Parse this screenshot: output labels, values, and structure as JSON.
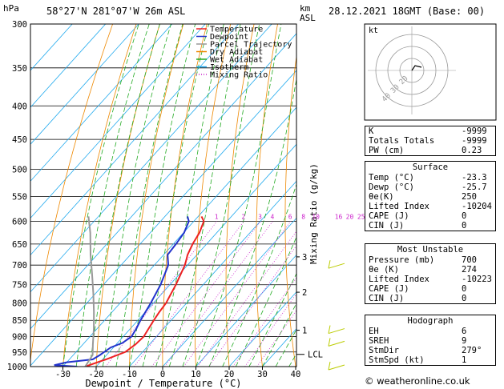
{
  "header": {
    "location": "58°27'N  281°07'W  26m  ASL",
    "datetime": "28.12.2021  18GMT  (Base: 00)",
    "hpa_label": "hPa",
    "km_label": "km",
    "asl_label": "ASL"
  },
  "chart_data": {
    "type": "line",
    "title": "",
    "xlabel": "Dewpoint / Temperature (°C)",
    "ylabel": "Mixing Ratio (g/kg)",
    "xlim": [
      -40,
      40
    ],
    "ylim_hpa": [
      1000,
      300
    ],
    "pressure_ticks": [
      300,
      350,
      400,
      450,
      500,
      550,
      600,
      650,
      700,
      750,
      800,
      850,
      900,
      950,
      1000
    ],
    "temp_ticks": [
      -30,
      -20,
      -10,
      0,
      10,
      20,
      30,
      40
    ],
    "km_ticks": [
      {
        "label": "1",
        "p": 880
      },
      {
        "label": "2",
        "p": 770
      },
      {
        "label": "3",
        "p": 680
      }
    ],
    "lcl": {
      "label": "LCL",
      "p": 958
    },
    "mixing_ratio_labels": [
      "1",
      "2",
      "3",
      "4",
      "6",
      "8",
      "10",
      "16",
      "20",
      "25"
    ],
    "mixing_ratio_values": [
      1,
      2,
      3,
      4,
      6,
      8,
      10,
      16,
      20,
      25
    ],
    "legend_position": "top-left",
    "legend": [
      {
        "name": "Temperature",
        "color": "#ee2222",
        "style": "solid"
      },
      {
        "name": "Dewpoint",
        "color": "#2233cc",
        "style": "solid"
      },
      {
        "name": "Parcel Trajectory",
        "color": "#999999",
        "style": "solid"
      },
      {
        "name": "Dry Adiabat",
        "color": "#ee8800",
        "style": "solid"
      },
      {
        "name": "Wet Adiabat",
        "color": "#22aa22",
        "style": "solid"
      },
      {
        "name": "Isotherm",
        "color": "#22aaee",
        "style": "solid"
      },
      {
        "name": "Mixing Ratio",
        "color": "#cc22cc",
        "style": "dotted"
      }
    ],
    "series": [
      {
        "name": "Temperature",
        "color": "#ee2222",
        "points": [
          [
            -23.3,
            1000
          ],
          [
            -19,
            975
          ],
          [
            -15.2,
            950
          ],
          [
            -14.2,
            925
          ],
          [
            -13.8,
            900
          ],
          [
            -14.5,
            875
          ],
          [
            -15.2,
            850
          ],
          [
            -15.8,
            825
          ],
          [
            -16.2,
            800
          ],
          [
            -17.2,
            775
          ],
          [
            -18.2,
            750
          ],
          [
            -19.5,
            725
          ],
          [
            -20.8,
            700
          ],
          [
            -22.8,
            675
          ],
          [
            -24.2,
            650
          ],
          [
            -25.2,
            625
          ],
          [
            -27,
            600
          ],
          [
            -29,
            590
          ]
        ]
      },
      {
        "name": "Dewpoint",
        "color": "#2233cc",
        "points": [
          [
            -25.7,
            1000
          ],
          [
            -33,
            995
          ],
          [
            -30,
            985
          ],
          [
            -23,
            975
          ],
          [
            -22,
            960
          ],
          [
            -20.8,
            935
          ],
          [
            -18.5,
            920
          ],
          [
            -17.5,
            900
          ],
          [
            -18.2,
            875
          ],
          [
            -19.2,
            850
          ],
          [
            -20.8,
            800
          ],
          [
            -22.8,
            750
          ],
          [
            -25.8,
            700
          ],
          [
            -28.8,
            675
          ],
          [
            -29.2,
            650
          ],
          [
            -29.8,
            625
          ],
          [
            -31.5,
            600
          ],
          [
            -33.2,
            590
          ]
        ]
      },
      {
        "name": "Parcel Trajectory",
        "color": "#999999",
        "points": [
          [
            -23.3,
            1000
          ],
          [
            -24.2,
            960
          ],
          [
            -27,
            925
          ],
          [
            -31,
            875
          ],
          [
            -35.5,
            825
          ],
          [
            -40.5,
            775
          ],
          [
            -46,
            725
          ],
          [
            -52,
            675
          ],
          [
            -58,
            625
          ],
          [
            -63,
            590
          ]
        ]
      }
    ]
  },
  "hodograph": {
    "kt_label": "kt",
    "ring_labels": [
      "10",
      "20",
      "30",
      "40"
    ]
  },
  "indices": {
    "rows": [
      {
        "label": "K",
        "value": "-9999"
      },
      {
        "label": "Totals Totals",
        "value": "-9999"
      },
      {
        "label": "PW (cm)",
        "value": "0.23"
      }
    ]
  },
  "surface": {
    "title": "Surface",
    "rows": [
      {
        "label": "Temp (°C)",
        "value": "-23.3"
      },
      {
        "label": "Dewp (°C)",
        "value": "-25.7"
      },
      {
        "label": "θe(K)",
        "value": "250"
      },
      {
        "label": "Lifted Index",
        "value": "-10204"
      },
      {
        "label": "CAPE (J)",
        "value": "0"
      },
      {
        "label": "CIN (J)",
        "value": "0"
      }
    ]
  },
  "most_unstable": {
    "title": "Most Unstable",
    "rows": [
      {
        "label": "Pressure (mb)",
        "value": "700"
      },
      {
        "label": "θe (K)",
        "value": "274"
      },
      {
        "label": "Lifted Index",
        "value": "-10223"
      },
      {
        "label": "CAPE (J)",
        "value": "0"
      },
      {
        "label": "CIN (J)",
        "value": "0"
      }
    ]
  },
  "hodograph_table": {
    "title": "Hodograph",
    "rows": [
      {
        "label": "EH",
        "value": "6"
      },
      {
        "label": "SREH",
        "value": "9"
      },
      {
        "label": "StmDir",
        "value": "279°"
      },
      {
        "label": "StmSpd (kt)",
        "value": "1"
      }
    ]
  },
  "footer": {
    "copyright": "© weatheronline.co.uk"
  },
  "colors": {
    "isotherm": "#22aaee",
    "dry_adiabat": "#ee8800",
    "wet_adiabat": "#22aa22",
    "mixing_ratio": "#cc22cc",
    "wind_barb": "#bbcc00"
  }
}
